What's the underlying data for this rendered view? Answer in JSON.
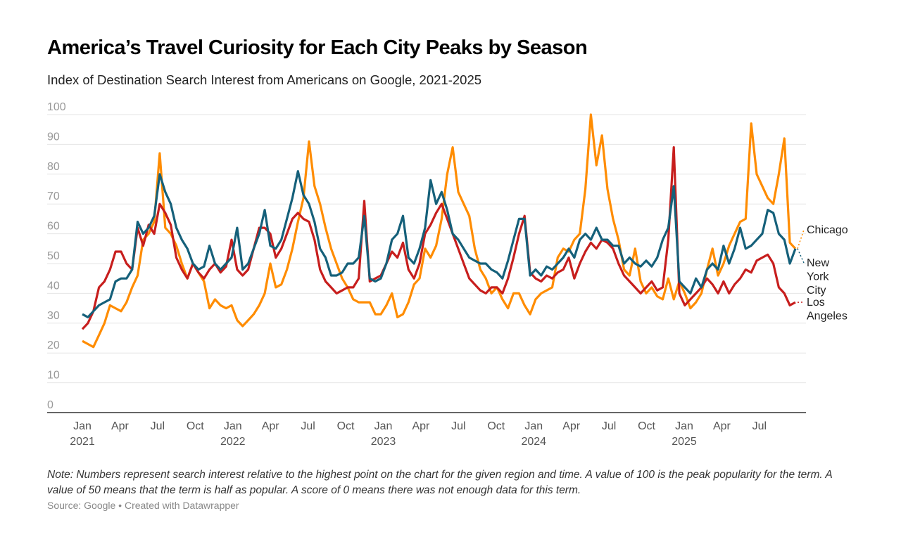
{
  "title": "America’s Travel Curiosity for Each City Peaks by Season",
  "subtitle": "Index of Destination Search Interest from Americans on Google, 2021-2025",
  "note": "Note: Numbers represent search interest relative to the highest point on the chart for the given region and time. A value of 100 is the peak popularity for the term. A value of 50 means that the term is half as popular. A score of 0 means there was not enough data for this term.",
  "source": "Source: Google • Created with Datawrapper",
  "colors": {
    "Chicago": "#ff8c00",
    "New York City": "#15607a",
    "Los Angeles": "#c71e1d"
  },
  "chart_data": {
    "type": "line",
    "title": "America’s Travel Curiosity for Each City Peaks by Season",
    "subtitle": "Index of Destination Search Interest from Americans on Google, 2021-2025",
    "xlabel": "",
    "ylabel": "",
    "ylim": [
      0,
      100
    ],
    "yticks": [
      0,
      10,
      20,
      30,
      40,
      50,
      60,
      70,
      80,
      90,
      100
    ],
    "grid": true,
    "legend": "inline-right",
    "x_start": "2021-01",
    "x_step": "2 weeks",
    "xticks": [
      {
        "label": "Jan",
        "year": "2021",
        "month": 0
      },
      {
        "label": "Apr",
        "year": "",
        "month": 3
      },
      {
        "label": "Jul",
        "year": "",
        "month": 6
      },
      {
        "label": "Oct",
        "year": "",
        "month": 9
      },
      {
        "label": "Jan",
        "year": "2022",
        "month": 12
      },
      {
        "label": "Apr",
        "year": "",
        "month": 15
      },
      {
        "label": "Jul",
        "year": "",
        "month": 18
      },
      {
        "label": "Oct",
        "year": "",
        "month": 21
      },
      {
        "label": "Jan",
        "year": "2023",
        "month": 24
      },
      {
        "label": "Apr",
        "year": "",
        "month": 27
      },
      {
        "label": "Jul",
        "year": "",
        "month": 30
      },
      {
        "label": "Oct",
        "year": "",
        "month": 33
      },
      {
        "label": "Jan",
        "year": "2024",
        "month": 36
      },
      {
        "label": "Apr",
        "year": "",
        "month": 39
      },
      {
        "label": "Jul",
        "year": "",
        "month": 42
      },
      {
        "label": "Oct",
        "year": "",
        "month": 45
      },
      {
        "label": "Jan",
        "year": "2025",
        "month": 48
      },
      {
        "label": "Apr",
        "year": "",
        "month": 51
      },
      {
        "label": "Jul",
        "year": "",
        "month": 54
      }
    ],
    "series": [
      {
        "name": "Chicago",
        "label_lines": [
          "Chicago"
        ],
        "values": [
          24,
          23,
          22,
          26,
          30,
          36,
          35,
          34,
          37,
          42,
          46,
          58,
          60,
          64,
          87,
          62,
          60,
          56,
          50,
          45,
          50,
          47,
          44,
          35,
          38,
          36,
          35,
          36,
          31,
          29,
          31,
          33,
          36,
          40,
          50,
          42,
          43,
          48,
          55,
          64,
          72,
          91,
          76,
          70,
          62,
          55,
          50,
          45,
          42,
          38,
          37,
          37,
          37,
          33,
          33,
          36,
          40,
          32,
          33,
          37,
          43,
          45,
          55,
          52,
          56,
          65,
          80,
          89,
          74,
          70,
          66,
          55,
          48,
          45,
          40,
          42,
          38,
          35,
          40,
          40,
          36,
          33,
          38,
          40,
          41,
          42,
          52,
          55,
          54,
          58,
          60,
          75,
          100,
          83,
          93,
          75,
          65,
          58,
          48,
          46,
          55,
          44,
          40,
          42,
          39,
          38,
          45,
          38,
          44,
          40,
          35,
          37,
          40,
          48,
          55,
          46,
          50,
          56,
          60,
          64,
          65,
          97,
          80,
          76,
          72,
          70,
          80,
          92,
          57,
          55
        ]
      },
      {
        "name": "New York City",
        "label_lines": [
          "New",
          "York",
          "City"
        ],
        "values": [
          33,
          32,
          34,
          36,
          37,
          38,
          44,
          45,
          45,
          48,
          64,
          60,
          62,
          66,
          80,
          74,
          70,
          62,
          58,
          55,
          50,
          48,
          49,
          56,
          50,
          48,
          50,
          52,
          62,
          48,
          50,
          55,
          60,
          68,
          56,
          55,
          58,
          65,
          72,
          81,
          73,
          70,
          64,
          55,
          52,
          46,
          46,
          47,
          50,
          50,
          52,
          66,
          45,
          44,
          45,
          50,
          58,
          60,
          66,
          52,
          50,
          55,
          62,
          78,
          70,
          74,
          68,
          60,
          58,
          55,
          52,
          51,
          50,
          50,
          48,
          47,
          45,
          51,
          58,
          65,
          65,
          46,
          48,
          46,
          49,
          48,
          50,
          52,
          55,
          52,
          58,
          60,
          58,
          62,
          58,
          58,
          56,
          56,
          50,
          52,
          50,
          49,
          51,
          49,
          52,
          58,
          62,
          76,
          44,
          42,
          40,
          45,
          42,
          48,
          50,
          48,
          56,
          50,
          55,
          62,
          55,
          56,
          58,
          60,
          68,
          67,
          60,
          58,
          50,
          55
        ]
      },
      {
        "name": "Los Angeles",
        "label_lines": [
          "Los",
          "Angeles"
        ],
        "values": [
          28,
          30,
          34,
          42,
          44,
          48,
          54,
          54,
          50,
          48,
          62,
          56,
          63,
          60,
          70,
          67,
          63,
          52,
          48,
          45,
          50,
          47,
          45,
          48,
          50,
          47,
          49,
          58,
          48,
          46,
          48,
          55,
          62,
          62,
          60,
          52,
          55,
          60,
          65,
          67,
          65,
          64,
          58,
          48,
          44,
          42,
          40,
          41,
          42,
          42,
          45,
          71,
          44,
          45,
          46,
          50,
          54,
          52,
          57,
          48,
          45,
          50,
          60,
          63,
          67,
          70,
          65,
          60,
          55,
          50,
          45,
          43,
          41,
          40,
          42,
          42,
          40,
          45,
          52,
          60,
          66,
          47,
          45,
          44,
          46,
          45,
          47,
          48,
          52,
          45,
          50,
          54,
          57,
          55,
          58,
          57,
          55,
          50,
          46,
          44,
          42,
          40,
          42,
          44,
          41,
          42,
          58,
          89,
          40,
          36,
          38,
          40,
          42,
          45,
          43,
          40,
          44,
          40,
          43,
          45,
          48,
          47,
          51,
          52,
          53,
          50,
          42,
          40,
          36,
          37
        ]
      }
    ]
  }
}
